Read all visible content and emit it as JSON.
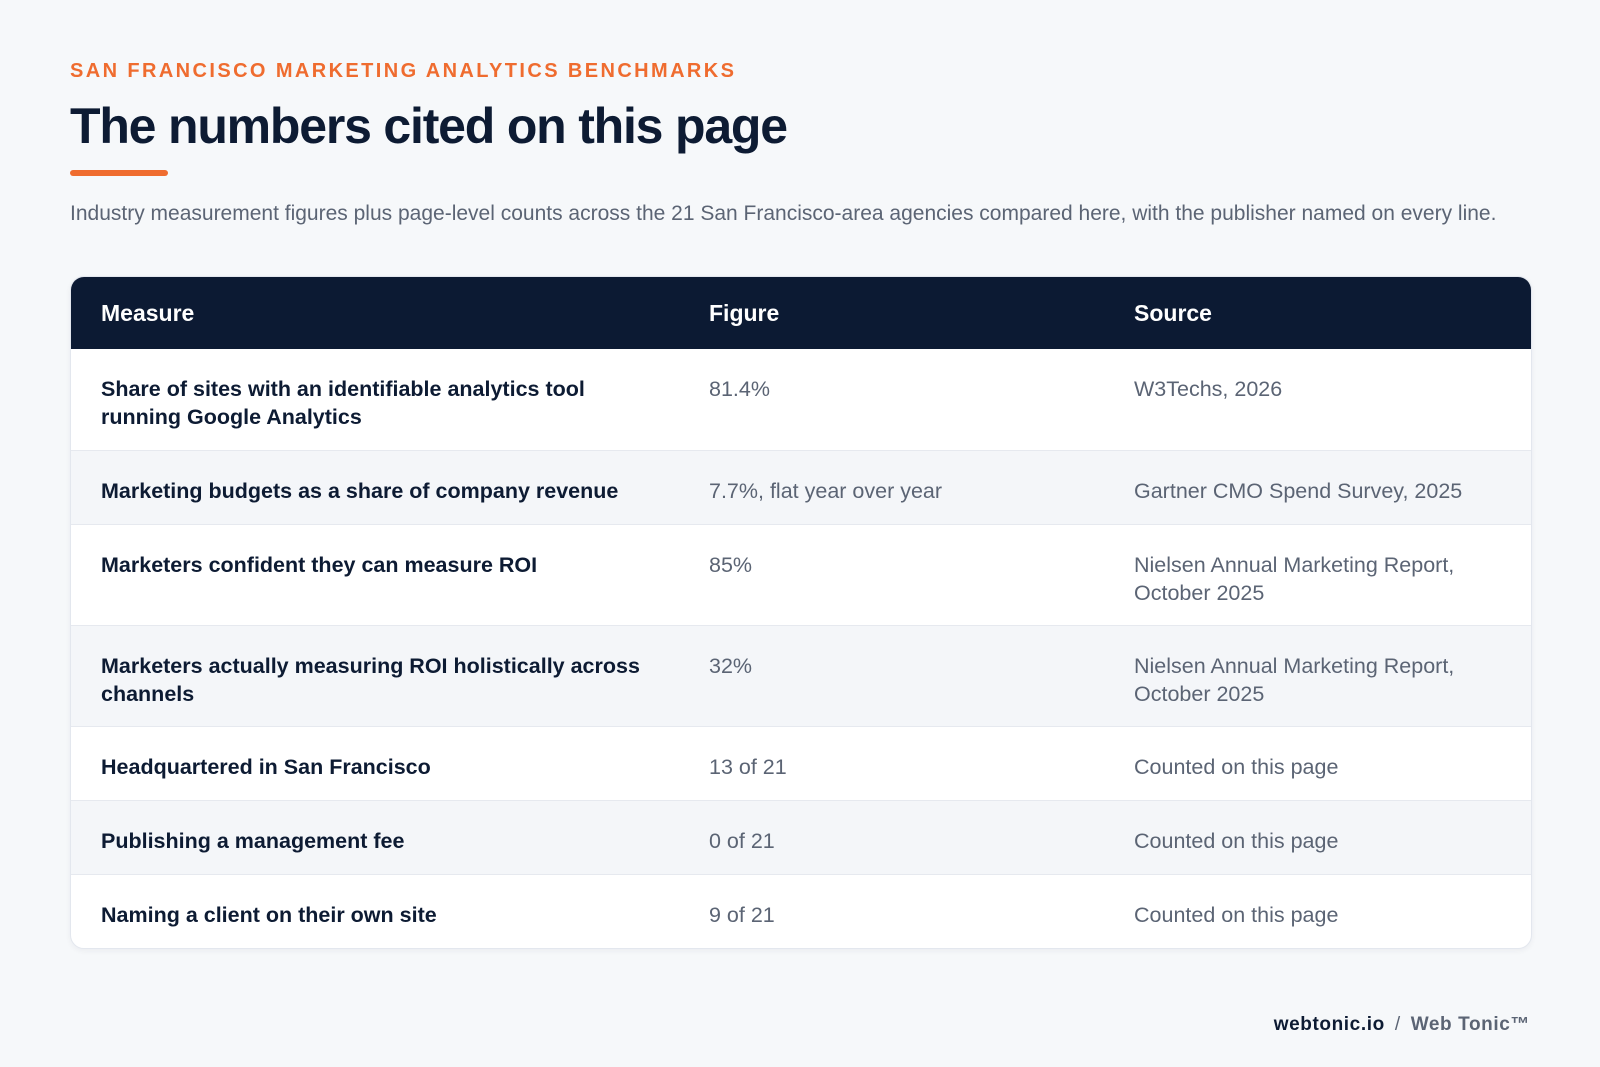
{
  "header": {
    "eyebrow": "SAN FRANCISCO MARKETING ANALYTICS BENCHMARKS",
    "title": "The numbers cited on this page",
    "intro": "Industry measurement figures plus page-level counts across the 21 San Francisco-area agencies compared here, with the publisher named on every line."
  },
  "table": {
    "columns": {
      "measure": "Measure",
      "figure": "Figure",
      "source": "Source"
    },
    "rows": [
      {
        "measure": "Share of sites with an identifiable analytics tool running Google Analytics",
        "figure": "81.4%",
        "source": "W3Techs, 2026"
      },
      {
        "measure": "Marketing budgets as a share of company revenue",
        "figure": "7.7%, flat year over year",
        "source": "Gartner CMO Spend Survey, 2025"
      },
      {
        "measure": "Marketers confident they can measure ROI",
        "figure": "85%",
        "source": "Nielsen Annual Marketing Report, October 2025"
      },
      {
        "measure": "Marketers actually measuring ROI holistically across channels",
        "figure": "32%",
        "source": "Nielsen Annual Marketing Report, October 2025"
      },
      {
        "measure": "Headquartered in San Francisco",
        "figure": "13 of 21",
        "source": "Counted on this page"
      },
      {
        "measure": "Publishing a management fee",
        "figure": "0 of 21",
        "source": "Counted on this page"
      },
      {
        "measure": "Naming a client on their own site",
        "figure": "9 of 21",
        "source": "Counted on this page"
      }
    ]
  },
  "footer": {
    "domain": "webtonic.io",
    "separator": "/",
    "brand": "Web Tonic™"
  },
  "colors": {
    "accent": "#ef6c2f",
    "navy": "#0c1a33",
    "muted_text": "#5b6474",
    "background": "#f6f8fa"
  }
}
